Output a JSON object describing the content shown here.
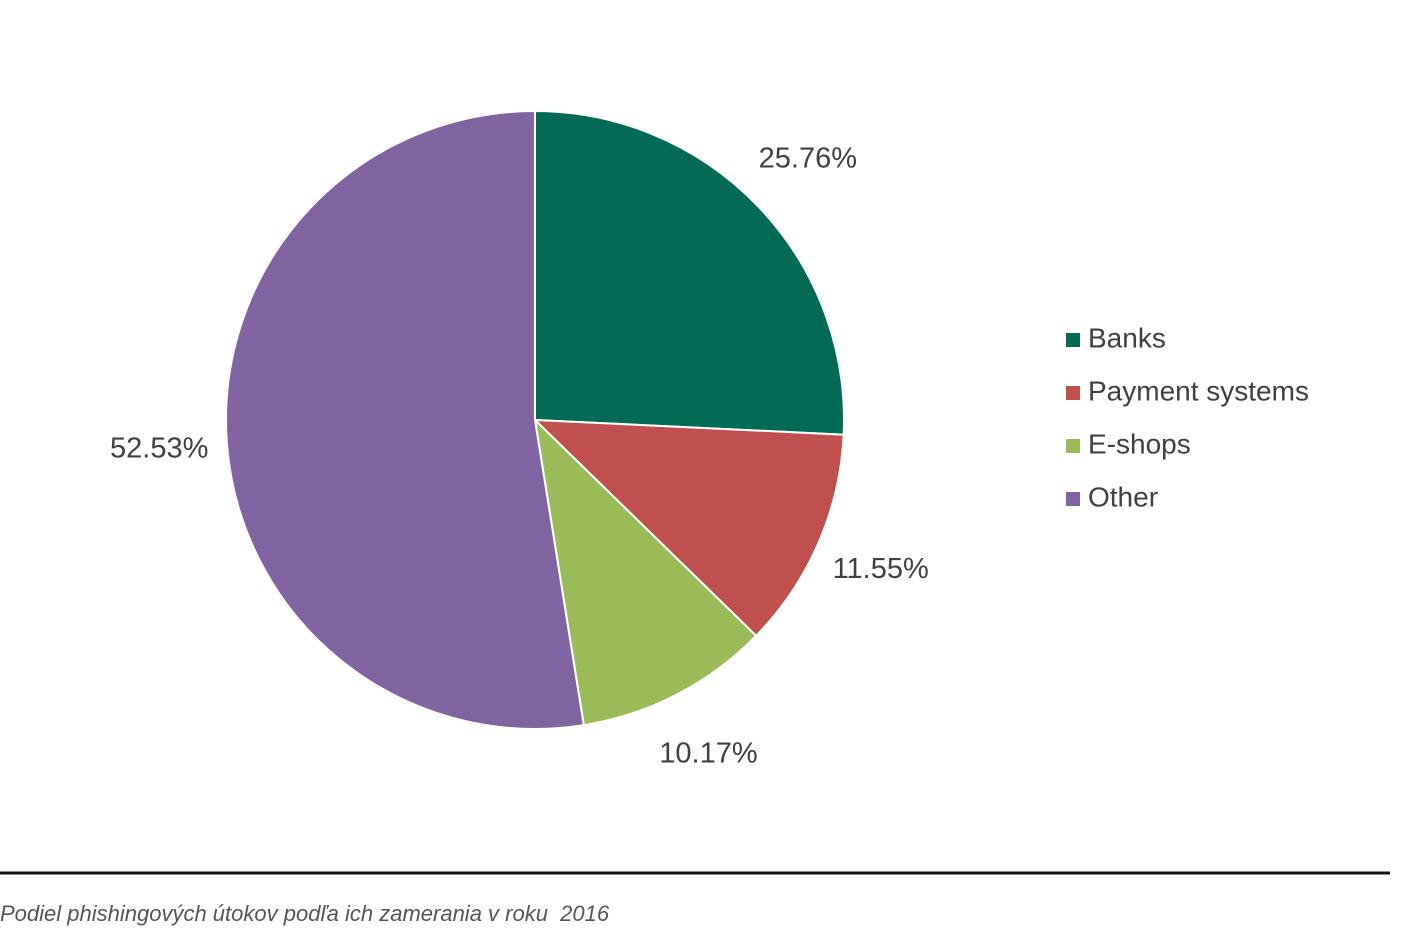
{
  "chart_data": {
    "type": "pie",
    "categories": [
      "Banks",
      "Payment systems",
      "E-shops",
      "Other"
    ],
    "values": [
      25.76,
      11.55,
      10.17,
      52.53
    ],
    "value_labels": [
      "25.76%",
      "11.55%",
      "10.17%",
      "52.53%"
    ],
    "colors": [
      "#036b55",
      "#c0504d",
      "#9bbb59",
      "#8064a2"
    ],
    "legend": "right",
    "caption": "Podiel phishingových útokov podľa ich zamerania v roku  2016"
  }
}
